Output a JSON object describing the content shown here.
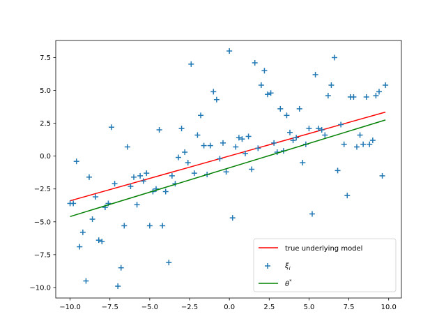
{
  "chart_data": {
    "type": "scatter",
    "xlim": [
      -10.9,
      10.8
    ],
    "ylim": [
      -10.8,
      8.8
    ],
    "xticks": [
      -10.0,
      -7.5,
      -5.0,
      -2.5,
      0.0,
      2.5,
      5.0,
      7.5,
      10.0
    ],
    "yticks": [
      -10.0,
      -7.5,
      -5.0,
      -2.5,
      0.0,
      2.5,
      5.0,
      7.5
    ],
    "xtick_labels": [
      "−10.0",
      "−7.5",
      "−5.0",
      "−2.5",
      "0.0",
      "2.5",
      "5.0",
      "7.5",
      "10.0"
    ],
    "ytick_labels": [
      "−10.0",
      "−7.5",
      "−5.0",
      "−2.5",
      "0.0",
      "2.5",
      "5.0",
      "7.5"
    ],
    "grid": false,
    "legend_position": "lower-right",
    "series": [
      {
        "name": "true underlying model",
        "kind": "line",
        "color": "#ff0000",
        "x": [
          -10.0,
          9.8
        ],
        "y": [
          -3.4,
          3.35
        ]
      },
      {
        "name": "ξ_i",
        "kind": "scatter",
        "marker": "plus",
        "color": "#1f77b4",
        "x": [
          -10.0,
          -9.8,
          -9.6,
          -9.4,
          -9.2,
          -9.0,
          -8.8,
          -8.6,
          -8.4,
          -8.2,
          -8.0,
          -7.8,
          -7.6,
          -7.4,
          -7.2,
          -7.0,
          -6.8,
          -6.6,
          -6.4,
          -6.2,
          -6.0,
          -5.8,
          -5.6,
          -5.4,
          -5.2,
          -5.0,
          -4.8,
          -4.6,
          -4.4,
          -4.2,
          -4.0,
          -3.8,
          -3.6,
          -3.4,
          -3.2,
          -3.0,
          -2.8,
          -2.6,
          -2.4,
          -2.2,
          -2.0,
          -1.8,
          -1.6,
          -1.4,
          -1.2,
          -1.0,
          -0.8,
          -0.6,
          -0.4,
          -0.2,
          0.0,
          0.2,
          0.4,
          0.6,
          0.8,
          1.0,
          1.2,
          1.4,
          1.6,
          1.8,
          2.0,
          2.2,
          2.4,
          2.6,
          2.8,
          3.0,
          3.2,
          3.4,
          3.6,
          3.8,
          4.0,
          4.2,
          4.4,
          4.6,
          4.8,
          5.0,
          5.2,
          5.4,
          5.6,
          5.8,
          6.0,
          6.2,
          6.4,
          6.6,
          6.8,
          7.0,
          7.2,
          7.4,
          7.6,
          7.8,
          8.0,
          8.2,
          8.4,
          8.6,
          8.8,
          9.0,
          9.2,
          9.4,
          9.6,
          9.8
        ],
        "y": [
          -3.6,
          -3.6,
          -0.4,
          -6.9,
          -5.8,
          -9.5,
          -1.6,
          -4.8,
          -3.1,
          -6.4,
          -6.5,
          -3.9,
          -3.6,
          2.2,
          -2.1,
          -9.9,
          -8.5,
          -5.3,
          0.7,
          -2.3,
          -1.6,
          -3.7,
          -1.5,
          -1.9,
          -1.3,
          -5.3,
          -2.7,
          -2.5,
          2.0,
          -5.3,
          -2.7,
          -8.1,
          -1.5,
          -2.1,
          -0.1,
          2.1,
          0.3,
          -0.5,
          7.0,
          -1.3,
          1.6,
          3.1,
          0.8,
          -1.4,
          0.8,
          4.9,
          4.3,
          -0.2,
          1.0,
          -1.2,
          8.0,
          -4.7,
          0.7,
          1.4,
          1.3,
          0.2,
          1.5,
          -1.0,
          7.1,
          0.6,
          5.4,
          6.5,
          4.7,
          4.8,
          1.0,
          0.3,
          3.6,
          0.4,
          3.1,
          1.8,
          1.2,
          1.4,
          3.6,
          -0.5,
          0.9,
          2.1,
          -4.4,
          6.2,
          2.1,
          2.0,
          1.6,
          4.6,
          5.4,
          7.5,
          -1.1,
          2.4,
          0.9,
          -3.0,
          4.5,
          4.5,
          0.7,
          1.6,
          0.9,
          4.5,
          0.9,
          1.2,
          4.6,
          4.9,
          -1.5,
          5.4
        ]
      },
      {
        "name": "θ*",
        "kind": "line",
        "color": "#008000",
        "x": [
          -10.0,
          9.8
        ],
        "y": [
          -4.6,
          2.75
        ]
      }
    ],
    "legend": [
      {
        "label": "true underlying model",
        "kind": "line",
        "color": "#ff0000"
      },
      {
        "label": "ξ",
        "sub": "i",
        "kind": "marker",
        "color": "#1f77b4"
      },
      {
        "label": "θ",
        "sup": "*",
        "kind": "line",
        "color": "#008000"
      }
    ]
  }
}
